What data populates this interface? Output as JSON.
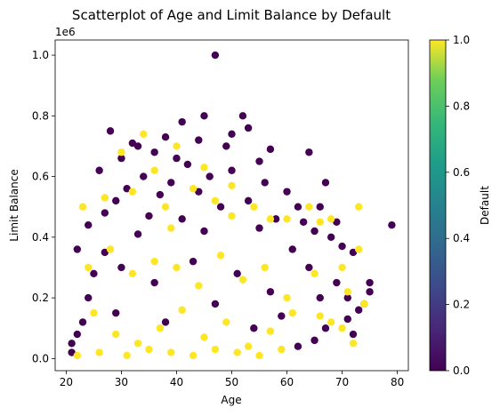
{
  "chart_data": {
    "type": "scatter",
    "title": "Scatterplot of Age and Limit Balance by Default",
    "xlabel": "Age",
    "ylabel": "Limit Balance",
    "y_offset_label": "1e6",
    "xlim": [
      18,
      82
    ],
    "ylim": [
      -0.04,
      1.05
    ],
    "xticks": [
      20,
      30,
      40,
      50,
      60,
      70,
      80
    ],
    "xtick_labels": [
      "20",
      "30",
      "40",
      "50",
      "60",
      "70",
      "80"
    ],
    "yticks": [
      0.0,
      0.2,
      0.4,
      0.6,
      0.8,
      1.0
    ],
    "ytick_labels": [
      "0.0",
      "0.2",
      "0.4",
      "0.6",
      "0.8",
      "1.0"
    ],
    "grid": false,
    "colormap": "viridis",
    "colorbar": {
      "label": "Default",
      "range": [
        0.0,
        1.0
      ],
      "ticks": [
        0.0,
        0.2,
        0.4,
        0.6,
        0.8,
        1.0
      ],
      "tick_labels": [
        "0.0",
        "0.2",
        "0.4",
        "0.6",
        "0.8",
        "1.0"
      ]
    },
    "series": [
      {
        "default_value": 0,
        "color": "#440154",
        "points": [
          [
            47,
            1.0
          ],
          [
            45,
            0.8
          ],
          [
            52,
            0.8
          ],
          [
            41,
            0.78
          ],
          [
            50,
            0.74
          ],
          [
            28,
            0.75
          ],
          [
            32,
            0.71
          ],
          [
            38,
            0.73
          ],
          [
            44,
            0.72
          ],
          [
            53,
            0.76
          ],
          [
            33,
            0.7
          ],
          [
            49,
            0.7
          ],
          [
            36,
            0.68
          ],
          [
            40,
            0.66
          ],
          [
            57,
            0.69
          ],
          [
            64,
            0.68
          ],
          [
            30,
            0.66
          ],
          [
            42,
            0.64
          ],
          [
            26,
            0.62
          ],
          [
            50,
            0.62
          ],
          [
            55,
            0.65
          ],
          [
            34,
            0.6
          ],
          [
            39,
            0.58
          ],
          [
            46,
            0.6
          ],
          [
            56,
            0.58
          ],
          [
            67,
            0.58
          ],
          [
            31,
            0.56
          ],
          [
            44,
            0.55
          ],
          [
            60,
            0.55
          ],
          [
            37,
            0.54
          ],
          [
            29,
            0.52
          ],
          [
            53,
            0.52
          ],
          [
            48,
            0.5
          ],
          [
            62,
            0.5
          ],
          [
            66,
            0.5
          ],
          [
            27,
            0.48
          ],
          [
            35,
            0.47
          ],
          [
            41,
            0.46
          ],
          [
            58,
            0.46
          ],
          [
            63,
            0.45
          ],
          [
            69,
            0.45
          ],
          [
            79,
            0.44
          ],
          [
            24,
            0.44
          ],
          [
            45,
            0.42
          ],
          [
            55,
            0.43
          ],
          [
            65,
            0.42
          ],
          [
            33,
            0.41
          ],
          [
            68,
            0.4
          ],
          [
            22,
            0.36
          ],
          [
            70,
            0.37
          ],
          [
            72,
            0.35
          ],
          [
            61,
            0.36
          ],
          [
            75,
            0.22
          ],
          [
            74,
            0.18
          ],
          [
            75,
            0.25
          ],
          [
            73,
            0.16
          ],
          [
            71,
            0.13
          ],
          [
            67,
            0.1
          ],
          [
            65,
            0.06
          ],
          [
            62,
            0.04
          ],
          [
            21,
            0.05
          ],
          [
            21,
            0.02
          ],
          [
            23,
            0.12
          ],
          [
            22,
            0.08
          ],
          [
            24,
            0.2
          ],
          [
            25,
            0.28
          ],
          [
            27,
            0.35
          ],
          [
            30,
            0.3
          ],
          [
            36,
            0.25
          ],
          [
            43,
            0.32
          ],
          [
            51,
            0.28
          ],
          [
            57,
            0.22
          ],
          [
            29,
            0.15
          ],
          [
            38,
            0.12
          ],
          [
            47,
            0.18
          ],
          [
            54,
            0.1
          ],
          [
            59,
            0.14
          ],
          [
            66,
            0.2
          ],
          [
            64,
            0.3
          ],
          [
            69,
            0.25
          ],
          [
            71,
            0.2
          ],
          [
            72,
            0.08
          ]
        ]
      },
      {
        "default_value": 1,
        "color": "#fde725",
        "points": [
          [
            34,
            0.74
          ],
          [
            30,
            0.68
          ],
          [
            40,
            0.7
          ],
          [
            36,
            0.62
          ],
          [
            45,
            0.63
          ],
          [
            43,
            0.56
          ],
          [
            50,
            0.57
          ],
          [
            32,
            0.55
          ],
          [
            27,
            0.53
          ],
          [
            47,
            0.52
          ],
          [
            38,
            0.5
          ],
          [
            23,
            0.5
          ],
          [
            54,
            0.5
          ],
          [
            64,
            0.5
          ],
          [
            73,
            0.5
          ],
          [
            60,
            0.46
          ],
          [
            66,
            0.45
          ],
          [
            68,
            0.46
          ],
          [
            39,
            0.43
          ],
          [
            50,
            0.47
          ],
          [
            57,
            0.46
          ],
          [
            73,
            0.36
          ],
          [
            70,
            0.3
          ],
          [
            65,
            0.28
          ],
          [
            71,
            0.22
          ],
          [
            74,
            0.18
          ],
          [
            72,
            0.05
          ],
          [
            70,
            0.1
          ],
          [
            68,
            0.12
          ],
          [
            66,
            0.14
          ],
          [
            24,
            0.3
          ],
          [
            28,
            0.36
          ],
          [
            32,
            0.28
          ],
          [
            36,
            0.32
          ],
          [
            40,
            0.3
          ],
          [
            44,
            0.24
          ],
          [
            48,
            0.34
          ],
          [
            52,
            0.26
          ],
          [
            56,
            0.3
          ],
          [
            60,
            0.2
          ],
          [
            25,
            0.15
          ],
          [
            29,
            0.08
          ],
          [
            33,
            0.05
          ],
          [
            37,
            0.1
          ],
          [
            41,
            0.16
          ],
          [
            45,
            0.07
          ],
          [
            49,
            0.12
          ],
          [
            53,
            0.04
          ],
          [
            57,
            0.09
          ],
          [
            61,
            0.15
          ],
          [
            22,
            0.01
          ],
          [
            26,
            0.02
          ],
          [
            31,
            0.01
          ],
          [
            35,
            0.03
          ],
          [
            39,
            0.02
          ],
          [
            43,
            0.01
          ],
          [
            47,
            0.03
          ],
          [
            51,
            0.02
          ],
          [
            55,
            0.01
          ],
          [
            59,
            0.03
          ]
        ]
      }
    ]
  }
}
